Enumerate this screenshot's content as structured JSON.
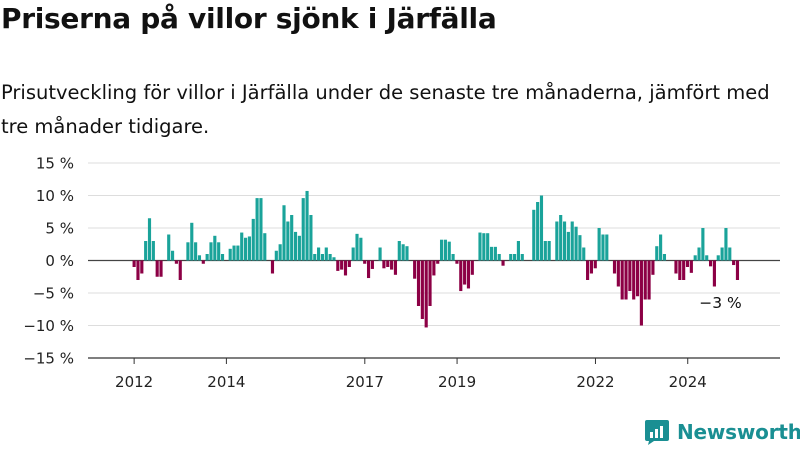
{
  "title": "Priserna på villor sjönk i Järfälla",
  "subtitle": "Prisutveckling för villor i Järfälla under de senaste tre månaderna, jämfört med tre månader tidigare.",
  "brand": {
    "name": "Newsworthy",
    "icon": "newsworthy-logo-icon",
    "color": "#1a8f93"
  },
  "colors": {
    "positive": "#1aa39a",
    "negative": "#8c0045",
    "grid": "#dddddd",
    "axis": "#333333"
  },
  "chart_data": {
    "type": "bar",
    "title": "Priserna på villor sjönk i Järfälla",
    "xlabel": "",
    "ylabel": "",
    "ylim": [
      -15,
      15
    ],
    "yticks": [
      15,
      10,
      5,
      0,
      -5,
      -10,
      -15
    ],
    "ytick_labels": [
      "15 %",
      "10 %",
      "5 %",
      "0 %",
      "−5 %",
      "−10 %",
      "−15 %"
    ],
    "xlim": [
      2011.0,
      2026.0
    ],
    "xticks": [
      2012,
      2014,
      2017,
      2019,
      2022,
      2024
    ],
    "xtick_labels": [
      "2012",
      "2014",
      "2017",
      "2019",
      "2022",
      "2024"
    ],
    "grid": true,
    "x_start": 2012.0,
    "x_step": 0.0833,
    "values": [
      -1,
      -3,
      -2,
      3,
      6.5,
      3,
      -2.5,
      -2.5,
      0,
      4,
      1.5,
      -0.5,
      -3,
      0,
      2.8,
      5.8,
      2.8,
      0.8,
      -0.5,
      1,
      2.8,
      3.8,
      2.8,
      1,
      0,
      1.8,
      2.3,
      2.3,
      4.3,
      3.5,
      3.7,
      6.4,
      9.6,
      9.6,
      4.2,
      0,
      -2,
      1.5,
      2.5,
      8.5,
      6,
      7,
      4.4,
      3.8,
      9.6,
      10.7,
      7,
      1,
      2,
      1,
      2,
      1,
      0.5,
      -1.6,
      -1.4,
      -2.3,
      -1,
      2,
      4.1,
      3.5,
      -0.5,
      -2.7,
      -1.3,
      0,
      2,
      -1.2,
      -1,
      -1.4,
      -2.2,
      3,
      2.5,
      2.2,
      0,
      -2.8,
      -7,
      -9,
      -10.3,
      -7,
      -2.3,
      -0.5,
      3.2,
      3.2,
      2.9,
      1,
      -0.5,
      -4.7,
      -3.7,
      -4.3,
      -2.2,
      0,
      4.3,
      4.2,
      4.2,
      2.1,
      2.1,
      1,
      -0.8,
      0,
      1,
      1,
      3,
      1,
      0,
      0,
      7.8,
      9,
      10,
      3,
      3,
      0,
      6,
      7,
      6,
      4.4,
      6,
      5.2,
      3.9,
      2,
      -3,
      -2,
      -1.2,
      5,
      4,
      4,
      0,
      -2,
      -4,
      -6,
      -6,
      -4.7,
      -6,
      -5.5,
      -10,
      -6,
      -6,
      -2.2,
      2.2,
      4,
      1,
      0,
      0,
      -2,
      -3,
      -3,
      -1,
      -1.9,
      0.8,
      2,
      5,
      0.8,
      -0.9,
      -4,
      0.8,
      2,
      5,
      2,
      -0.7,
      -3
    ],
    "annotations": [
      {
        "x": 2024.71,
        "y": -3,
        "text": "−3 %"
      }
    ]
  }
}
